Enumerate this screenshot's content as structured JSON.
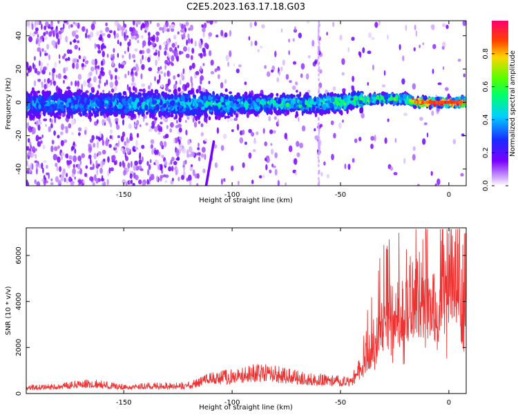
{
  "title": "C2E5.2023.163.17.18.G03",
  "chart_data": [
    {
      "id": "spectrogram",
      "type": "heatmap",
      "xlabel": "Height of straight line (km)",
      "ylabel": "Frequency (Hz)",
      "xlim": [
        -195,
        8
      ],
      "ylim": [
        -50,
        49
      ],
      "xticks": [
        -150,
        -100,
        -50,
        0
      ],
      "yticks": [
        -40,
        -20,
        0,
        20,
        40
      ],
      "colorbar": {
        "label": "Normalized spectral amplitude",
        "range": [
          0,
          1
        ],
        "ticks": [
          0.0,
          0.2,
          0.4,
          0.6,
          0.8
        ],
        "tick_labels": [
          "0.0",
          "0.2",
          "0.4",
          "0.6",
          "0.8"
        ]
      },
      "ridge": [
        {
          "x": -190,
          "y": -1,
          "amp": 0.25
        },
        {
          "x": -150,
          "y": -1,
          "amp": 0.3
        },
        {
          "x": -100,
          "y": -1,
          "amp": 0.35
        },
        {
          "x": -80,
          "y": -1,
          "amp": 0.4
        },
        {
          "x": -50,
          "y": 0,
          "amp": 0.45
        },
        {
          "x": -35,
          "y": 2,
          "amp": 0.5
        },
        {
          "x": -20,
          "y": 2,
          "amp": 0.55
        },
        {
          "x": -15,
          "y": 0,
          "amp": 0.9
        },
        {
          "x": 0,
          "y": 0,
          "amp": 1.0
        },
        {
          "x": 8,
          "y": 0,
          "amp": 0.95
        }
      ]
    },
    {
      "id": "snr",
      "type": "line",
      "xlabel": "Height of straight line (km)",
      "ylabel": "SNR (10 * v/v)",
      "xlim": [
        -195,
        8
      ],
      "ylim": [
        0,
        7200
      ],
      "xticks": [
        -150,
        -100,
        -50,
        0
      ],
      "yticks": [
        0,
        2000,
        4000,
        6000
      ],
      "color": "#ee3333",
      "x": [
        -195,
        -180,
        -165,
        -150,
        -140,
        -130,
        -120,
        -110,
        -100,
        -90,
        -80,
        -70,
        -60,
        -50,
        -45,
        -40,
        -35,
        -30,
        -25,
        -20,
        -15,
        -10,
        -5,
        0,
        5,
        8
      ],
      "y": [
        250,
        300,
        450,
        280,
        330,
        330,
        350,
        650,
        750,
        900,
        850,
        700,
        600,
        550,
        550,
        1200,
        2200,
        3000,
        3500,
        3800,
        4200,
        3500,
        4000,
        5200,
        5400,
        4800
      ]
    }
  ]
}
